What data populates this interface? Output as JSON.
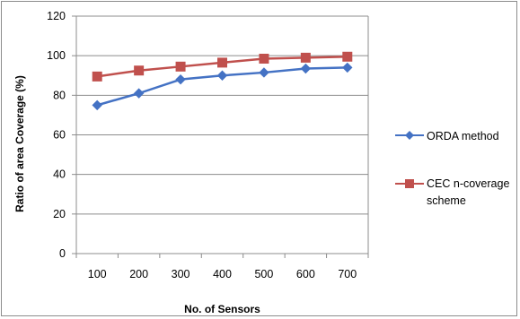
{
  "chart_data": {
    "type": "line",
    "title": "",
    "xlabel": "No. of Sensors",
    "ylabel": "Ratio of area Coverage (%)",
    "categories": [
      "100",
      "200",
      "300",
      "400",
      "500",
      "600",
      "700"
    ],
    "ylim": [
      0,
      120
    ],
    "yticks": [
      "0",
      "20",
      "40",
      "60",
      "80",
      "100",
      "120"
    ],
    "grid": true,
    "legend_position": "right",
    "series": [
      {
        "name": "ORDA method",
        "color": "#4472c4",
        "marker": "diamond",
        "values": [
          75,
          81,
          88,
          90,
          91.5,
          93.5,
          94
        ]
      },
      {
        "name": "CEC n-coverage scheme",
        "color": "#c0504d",
        "marker": "square",
        "values": [
          89.5,
          92.5,
          94.5,
          96.5,
          98.5,
          99,
          99.5
        ]
      }
    ]
  }
}
